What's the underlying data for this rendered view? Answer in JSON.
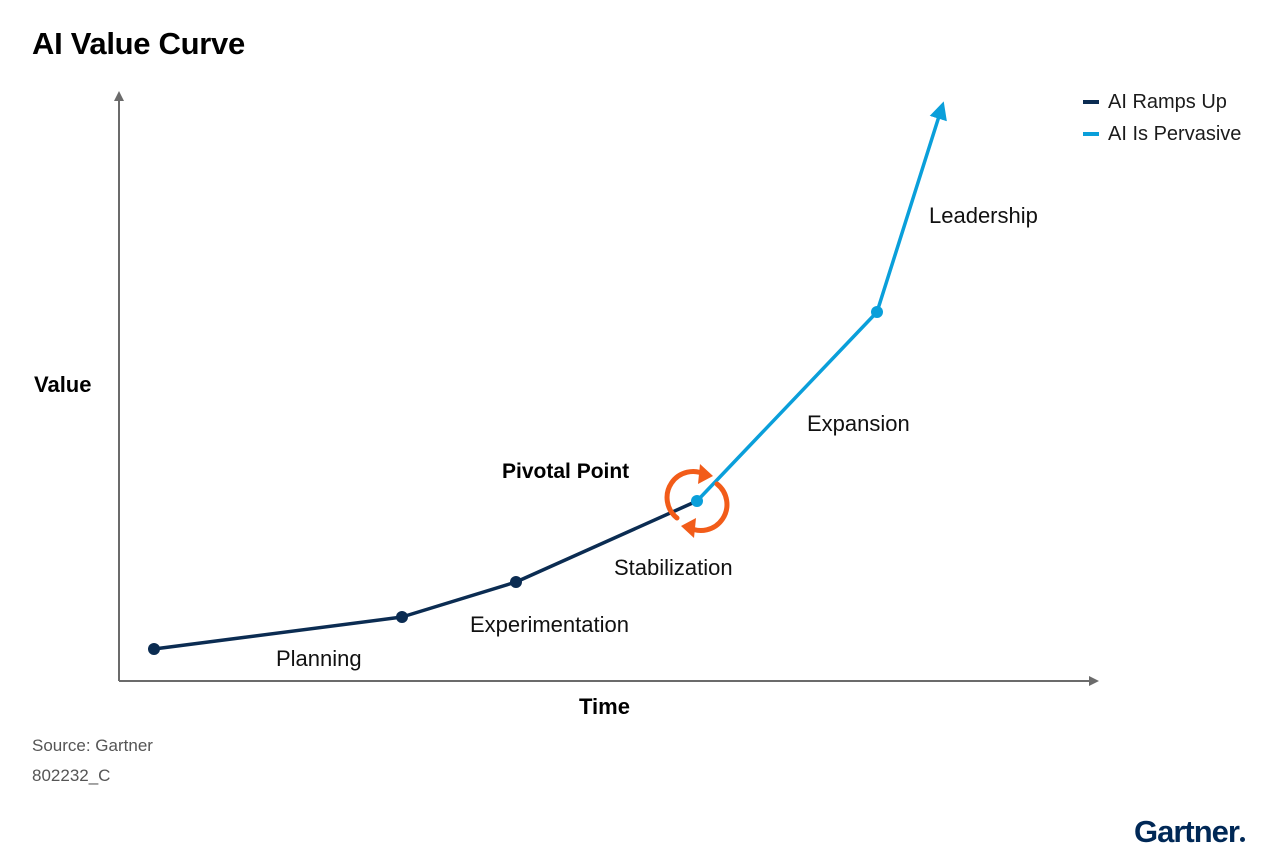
{
  "title": "AI Value Curve",
  "axes": {
    "y_label": "Value",
    "x_label": "Time"
  },
  "legend": [
    {
      "label": "AI Ramps Up",
      "color": "#0b2c52"
    },
    {
      "label": "AI Is Pervasive",
      "color": "#0a9fda"
    }
  ],
  "stages": [
    {
      "label": "Planning"
    },
    {
      "label": "Experimentation"
    },
    {
      "label": "Stabilization"
    },
    {
      "label": "Expansion"
    },
    {
      "label": "Leadership"
    }
  ],
  "pivot": {
    "label": "Pivotal Point",
    "icon": "refresh-cycle-icon",
    "color": "#f25c19"
  },
  "footer": {
    "source": "Source: Gartner",
    "doc_id": "802232_C",
    "logo": "Gartner"
  }
}
